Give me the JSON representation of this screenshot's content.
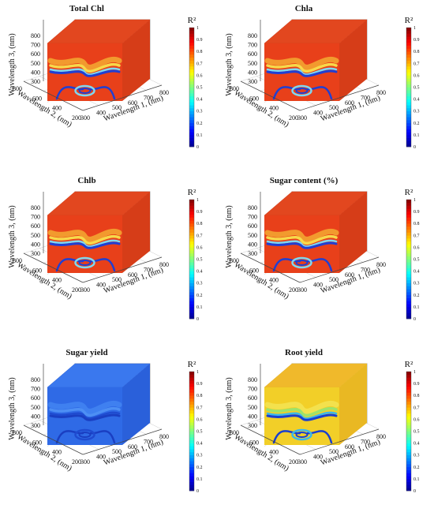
{
  "chart_data": [
    {
      "type": "heatmap",
      "title": "Total Chl",
      "xlabel": "Wavelength 1, (nm)",
      "ylabel": "Wavelength 2, (nm)",
      "zlabel": "Wavelength 3, (nm)",
      "x_ticks": [
        "300",
        "400",
        "500",
        "600",
        "700",
        "800"
      ],
      "y_ticks": [
        "200",
        "400",
        "600",
        "800"
      ],
      "z_ticks": [
        "300",
        "400",
        "500",
        "600",
        "700",
        "800"
      ],
      "colorbar_label": "R²",
      "colorbar_ticks": [
        "0",
        "0.1",
        "0.2",
        "0.3",
        "0.4",
        "0.5",
        "0.6",
        "0.7",
        "0.8",
        "0.9",
        "1"
      ],
      "colorbar_range": [
        0,
        1
      ],
      "scheme": "red",
      "grid": true
    },
    {
      "type": "heatmap",
      "title": "Chla",
      "xlabel": "Wavelength 1, (nm)",
      "ylabel": "Wavelength 2, (nm)",
      "zlabel": "Wavelength 3, (nm)",
      "x_ticks": [
        "300",
        "400",
        "500",
        "600",
        "700",
        "800"
      ],
      "y_ticks": [
        "200",
        "400",
        "600",
        "800"
      ],
      "z_ticks": [
        "300",
        "400",
        "500",
        "600",
        "700",
        "800"
      ],
      "colorbar_label": "R²",
      "colorbar_ticks": [
        "0",
        "0.1",
        "0.2",
        "0.3",
        "0.4",
        "0.5",
        "0.6",
        "0.7",
        "0.8",
        "0.9",
        "1"
      ],
      "colorbar_range": [
        0,
        1
      ],
      "scheme": "red",
      "grid": true
    },
    {
      "type": "heatmap",
      "title": "Chlb",
      "xlabel": "Wavelength 1, (nm)",
      "ylabel": "Wavelength 2, (nm)",
      "zlabel": "Wavelength 3, (nm)",
      "x_ticks": [
        "300",
        "400",
        "500",
        "600",
        "700",
        "800"
      ],
      "y_ticks": [
        "200",
        "400",
        "600",
        "800"
      ],
      "z_ticks": [
        "300",
        "400",
        "500",
        "600",
        "700",
        "800"
      ],
      "colorbar_label": "R²",
      "colorbar_ticks": [
        "0",
        "0.1",
        "0.2",
        "0.3",
        "0.4",
        "0.5",
        "0.6",
        "0.7",
        "0.8",
        "0.9",
        "1"
      ],
      "colorbar_range": [
        0,
        1
      ],
      "scheme": "red",
      "grid": true
    },
    {
      "type": "heatmap",
      "title": "Sugar content (%)",
      "xlabel": "Wavelength 1, (nm)",
      "ylabel": "Wavelength 2, (nm)",
      "zlabel": "Wavelength 3, (nm)",
      "x_ticks": [
        "300",
        "400",
        "500",
        "600",
        "700",
        "800"
      ],
      "y_ticks": [
        "200",
        "400",
        "600",
        "800"
      ],
      "z_ticks": [
        "300",
        "400",
        "500",
        "600",
        "700",
        "800"
      ],
      "colorbar_label": "R²",
      "colorbar_ticks": [
        "0",
        "0.1",
        "0.2",
        "0.3",
        "0.4",
        "0.5",
        "0.6",
        "0.7",
        "0.8",
        "0.9",
        "1"
      ],
      "colorbar_range": [
        0,
        1
      ],
      "scheme": "red",
      "grid": true
    },
    {
      "type": "heatmap",
      "title": "Sugar yield",
      "xlabel": "Wavelength 1, (nm)",
      "ylabel": "Wavelength 2, (nm)",
      "zlabel": "Wavelength 3, (nm)",
      "x_ticks": [
        "300",
        "400",
        "500",
        "600",
        "700",
        "800"
      ],
      "y_ticks": [
        "200",
        "400",
        "600",
        "800"
      ],
      "z_ticks": [
        "300",
        "400",
        "500",
        "600",
        "700",
        "800"
      ],
      "colorbar_label": "R²",
      "colorbar_ticks": [
        "0",
        "0.1",
        "0.2",
        "0.3",
        "0.4",
        "0.5",
        "0.6",
        "0.7",
        "0.8",
        "0.9",
        "1"
      ],
      "colorbar_range": [
        0,
        1
      ],
      "scheme": "blue",
      "grid": true
    },
    {
      "type": "heatmap",
      "title": "Root yield",
      "xlabel": "Wavelength 1, (nm)",
      "ylabel": "Wavelength 2, (nm)",
      "zlabel": "Wavelength 3, (nm)",
      "x_ticks": [
        "300",
        "400",
        "500",
        "600",
        "700",
        "800"
      ],
      "y_ticks": [
        "200",
        "400",
        "600",
        "800"
      ],
      "z_ticks": [
        "300",
        "400",
        "500",
        "600",
        "700",
        "800"
      ],
      "colorbar_label": "R²",
      "colorbar_ticks": [
        "0",
        "0.1",
        "0.2",
        "0.3",
        "0.4",
        "0.5",
        "0.6",
        "0.7",
        "0.8",
        "0.9",
        "1"
      ],
      "colorbar_range": [
        0,
        1
      ],
      "scheme": "yellow",
      "grid": true
    }
  ]
}
